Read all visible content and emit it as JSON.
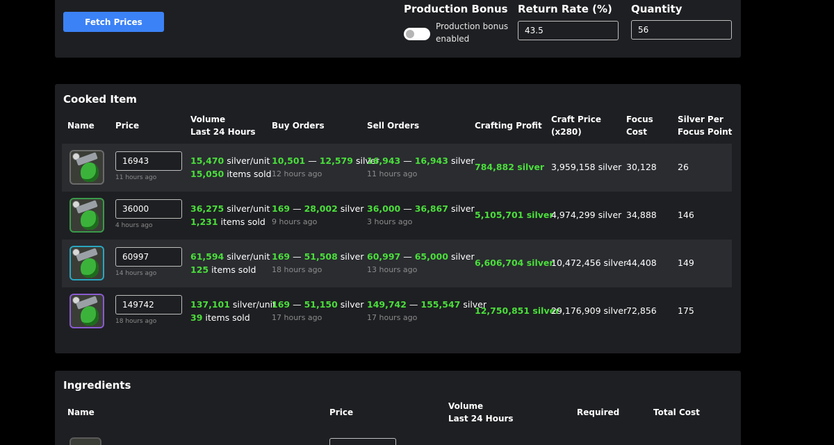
{
  "controls": {
    "fetch_button": "Fetch Prices",
    "production_bonus_label": "Production Bonus",
    "production_bonus_toggle_text": "Production bonus enabled",
    "production_bonus_enabled": false,
    "return_rate_label": "Return Rate (%)",
    "return_rate_value": "43.5",
    "quantity_label": "Quantity",
    "quantity_value": "56"
  },
  "cooked": {
    "title": "Cooked Item",
    "headers": {
      "name": "Name",
      "price": "Price",
      "volume_1": "Volume",
      "volume_2": "Last 24 Hours",
      "buy": "Buy Orders",
      "sell": "Sell Orders",
      "profit": "Crafting Profit",
      "craft_1": "Craft Price",
      "craft_2": "(x280)",
      "focus_1": "Focus",
      "focus_2": "Cost",
      "spfp_1": "Silver Per",
      "spfp_2": "Focus Point"
    },
    "rows": [
      {
        "tier_color": "#6b6b6b",
        "price": "16943",
        "price_ago": "11 hours ago",
        "vol_price": "15,470",
        "vol_price_unit": "silver/unit",
        "vol_sold": "15,050",
        "vol_sold_unit": "items sold",
        "buy_low": "10,501",
        "buy_dash": "—",
        "buy_high": "12,579",
        "buy_unit": "silver",
        "buy_ago": "12 hours ago",
        "sell_low": "16,943",
        "sell_dash": "—",
        "sell_high": "16,943",
        "sell_unit": "silver",
        "sell_ago": "11 hours ago",
        "profit": "784,882 silver",
        "craft_price": "3,959,158 silver",
        "focus_cost": "30,128",
        "spfp": "26"
      },
      {
        "tier_color": "#3a9a4a",
        "price": "36000",
        "price_ago": "4 hours ago",
        "vol_price": "36,275",
        "vol_price_unit": "silver/unit",
        "vol_sold": "1,231",
        "vol_sold_unit": "items sold",
        "buy_low": "169",
        "buy_dash": "—",
        "buy_high": "28,002",
        "buy_unit": "silver",
        "buy_ago": "9 hours ago",
        "sell_low": "36,000",
        "sell_dash": "—",
        "sell_high": "36,867",
        "sell_unit": "silver",
        "sell_ago": "3 hours ago",
        "profit": "5,105,701 silver",
        "craft_price": "4,974,299 silver",
        "focus_cost": "34,888",
        "spfp": "146"
      },
      {
        "tier_color": "#2aa6c0",
        "price": "60997",
        "price_ago": "14 hours ago",
        "vol_price": "61,594",
        "vol_price_unit": "silver/unit",
        "vol_sold": "125",
        "vol_sold_unit": "items sold",
        "buy_low": "169",
        "buy_dash": "—",
        "buy_high": "51,508",
        "buy_unit": "silver",
        "buy_ago": "18 hours ago",
        "sell_low": "60,997",
        "sell_dash": "—",
        "sell_high": "65,000",
        "sell_unit": "silver",
        "sell_ago": "13 hours ago",
        "profit": "6,606,704 silver",
        "craft_price": "10,472,456 silver",
        "focus_cost": "44,408",
        "spfp": "149"
      },
      {
        "tier_color": "#8a5ad0",
        "price": "149742",
        "price_ago": "18 hours ago",
        "vol_price": "137,101",
        "vol_price_unit": "silver/unit",
        "vol_sold": "39",
        "vol_sold_unit": "items sold",
        "buy_low": "169",
        "buy_dash": "—",
        "buy_high": "51,150",
        "buy_unit": "silver",
        "buy_ago": "17 hours ago",
        "sell_low": "149,742",
        "sell_dash": "—",
        "sell_high": "155,547",
        "sell_unit": "silver",
        "sell_ago": "17 hours ago",
        "profit": "12,750,851 silver",
        "craft_price": "29,176,909 silver",
        "focus_cost": "72,856",
        "spfp": "175"
      }
    ]
  },
  "ingredients": {
    "title": "Ingredients",
    "headers": {
      "name": "Name",
      "price": "Price",
      "volume_1": "Volume",
      "volume_2": "Last 24 Hours",
      "required": "Required",
      "total": "Total Cost"
    }
  },
  "colors": {
    "accent": "#3b82f6",
    "green": "#4ade3b",
    "panel": "#1e1f22",
    "row_alt": "#2a2c30"
  },
  "icons": [
    "cooked-item-icon",
    "toggle-switch"
  ]
}
